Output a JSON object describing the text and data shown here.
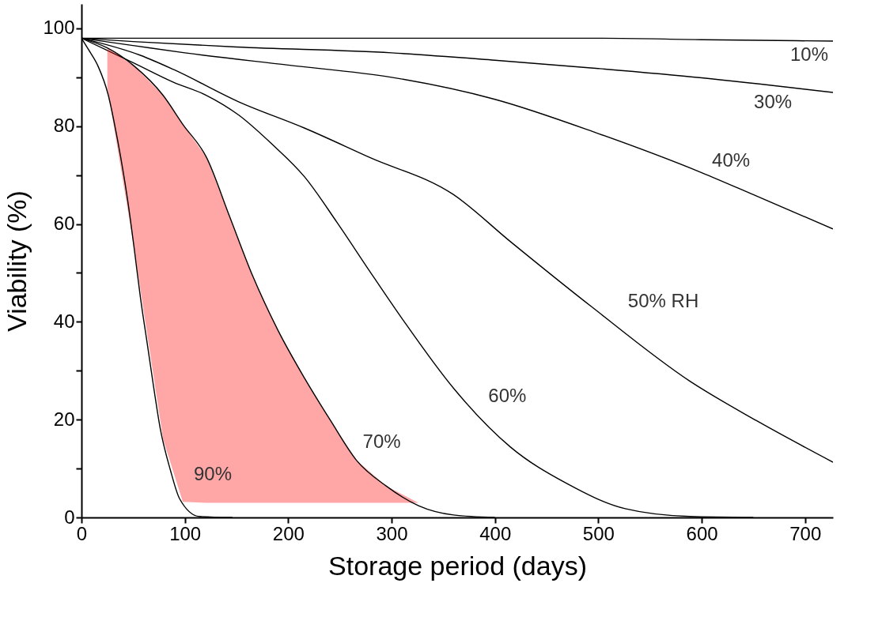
{
  "chart_data": {
    "type": "line",
    "xlabel": "Storage period (days)",
    "ylabel": "Viability (%)",
    "xlim": [
      0,
      727
    ],
    "ylim": [
      0,
      105
    ],
    "xticks": [
      0,
      100,
      200,
      300,
      400,
      500,
      600,
      700
    ],
    "yticks": [
      0,
      {
        "value": 10,
        "label": null
      },
      20,
      {
        "value": 30,
        "label": null
      },
      40,
      {
        "value": 50,
        "label": null
      },
      60,
      {
        "value": 70,
        "label": null
      },
      80,
      {
        "value": 90,
        "label": null
      },
      100
    ],
    "grid": false,
    "line_style": "solid",
    "series": [
      {
        "name": "10%",
        "color": "#000000",
        "x": [
          0,
          100,
          200,
          300,
          400,
          500,
          600,
          727
        ],
        "values": [
          98,
          98,
          98,
          98,
          98,
          98,
          97.7,
          97.4
        ]
      },
      {
        "name": "30%",
        "color": "#000000",
        "x": [
          0,
          50,
          150,
          300,
          400,
          500,
          600,
          727
        ],
        "values": [
          98,
          97.3,
          96.2,
          95,
          93.5,
          91.8,
          89.9,
          86.9
        ]
      },
      {
        "name": "40%",
        "color": "#000000",
        "x": [
          0,
          50,
          100,
          200,
          300,
          400,
          500,
          600,
          650,
          727
        ],
        "values": [
          98,
          96.5,
          95,
          92.5,
          90,
          85.5,
          78.5,
          70.5,
          66,
          59
        ]
      },
      {
        "name": "50% RH",
        "color": "#000000",
        "x": [
          0,
          57,
          89,
          152,
          216,
          279,
          360,
          415,
          494,
          589,
          653,
          727
        ],
        "values": [
          98,
          94.5,
          91.6,
          85,
          79.6,
          73.6,
          66,
          56.4,
          43,
          27.8,
          19.8,
          11.3
        ]
      },
      {
        "name": "60%",
        "color": "#000000",
        "x": [
          0,
          50,
          89,
          121,
          152,
          184,
          216,
          247,
          279,
          311,
          360,
          415,
          469,
          526,
          589,
          650
        ],
        "values": [
          98,
          93,
          89,
          86.3,
          82.3,
          76.4,
          69.6,
          60.4,
          50.3,
          40.4,
          26.4,
          14.4,
          7,
          1.8,
          0.2,
          0
        ]
      },
      {
        "name": "70%",
        "color": "#000000",
        "x": [
          0,
          25,
          51,
          79,
          98,
          121,
          143,
          165,
          190,
          216,
          241,
          266,
          295,
          326,
          360,
          400
        ],
        "values": [
          98,
          96,
          92.3,
          86.3,
          80.4,
          73.6,
          61.7,
          49.7,
          38.3,
          28.4,
          19.8,
          11.7,
          6.4,
          2.4,
          0.5,
          0
        ],
        "lower": [
          null,
          88,
          55,
          16,
          3.2,
          3,
          3,
          3,
          3,
          3,
          3,
          3,
          3,
          3,
          null,
          null
        ],
        "upper": [
          null,
          96,
          92.3,
          86.3,
          80.4,
          73.6,
          61.7,
          49.7,
          38.3,
          28.4,
          19.8,
          11.7,
          6.4,
          3,
          null,
          null
        ]
      },
      {
        "name": "90%",
        "color": "#000000",
        "x": [
          0,
          7,
          16,
          26,
          32,
          38,
          45,
          51,
          57,
          64,
          70,
          76,
          86,
          95,
          114,
          146
        ],
        "values": [
          98,
          95.6,
          92.3,
          86.3,
          80.4,
          73.6,
          64.4,
          55,
          45,
          35,
          26.4,
          18.4,
          9.7,
          3.8,
          0.2,
          0
        ]
      }
    ]
  }
}
